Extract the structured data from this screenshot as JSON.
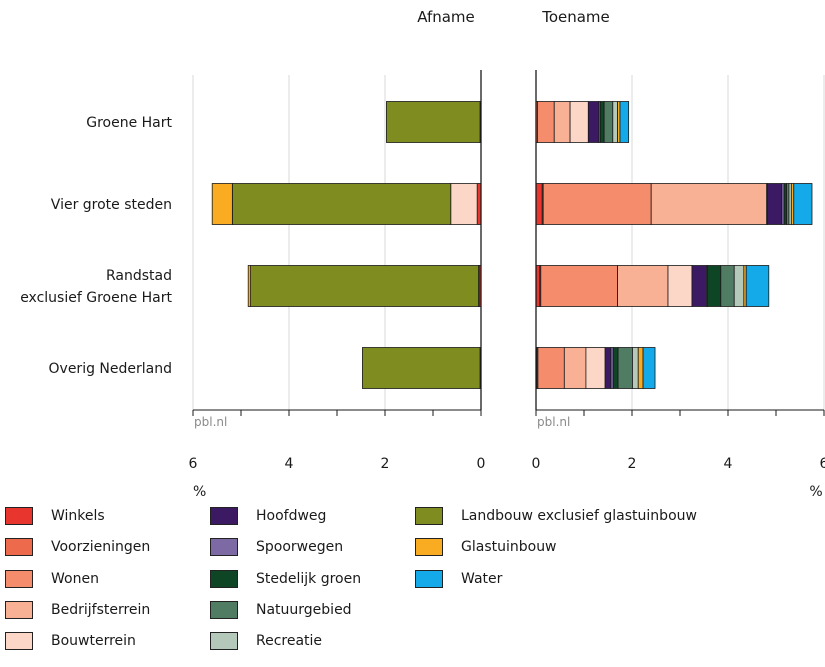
{
  "chart_data": {
    "type": "bar",
    "orientation": "horizontal",
    "stacked": true,
    "panels": [
      {
        "title": "Afname",
        "direction": "reversed",
        "xlim": [
          0,
          6
        ],
        "ticks": [
          6,
          4,
          2,
          0
        ],
        "xlabel": "%",
        "watermark": "pbl.nl"
      },
      {
        "title": "Toename",
        "direction": "normal",
        "xlim": [
          0,
          6
        ],
        "ticks": [
          0,
          2,
          4,
          6
        ],
        "xlabel": "%",
        "watermark": "pbl.nl"
      }
    ],
    "categories": [
      "Groene Hart",
      "Vier grote steden",
      "Randstad exclusief Groene Hart",
      "Overig Nederland"
    ],
    "category_lines": [
      [
        "Groene Hart"
      ],
      [
        "Vier grote steden"
      ],
      [
        "Randstad",
        "exclusief Groene Hart"
      ],
      [
        "Overig Nederland"
      ]
    ],
    "series": [
      {
        "name": "Winkels",
        "color": "#e8352e",
        "afname": [
          0,
          0.08,
          0.03,
          0
        ],
        "toename": [
          0,
          0.13,
          0.08,
          0.02
        ]
      },
      {
        "name": "Voorzieningen",
        "color": "#ee6a4c",
        "afname": [
          0,
          0,
          0,
          0
        ],
        "toename": [
          0.03,
          0.02,
          0.02,
          0.02
        ]
      },
      {
        "name": "Wonen",
        "color": "#f58d6d",
        "afname": [
          0,
          0,
          0,
          0
        ],
        "toename": [
          0.35,
          2.25,
          1.6,
          0.55
        ]
      },
      {
        "name": "Bedrijfsterrein",
        "color": "#f9b196",
        "afname": [
          0,
          0,
          0,
          0
        ],
        "toename": [
          0.33,
          2.4,
          1.05,
          0.45
        ]
      },
      {
        "name": "Bouwterrein",
        "color": "#fcd6c6",
        "afname": [
          0.02,
          0.55,
          0.02,
          0.02
        ],
        "toename": [
          0.38,
          0.02,
          0.5,
          0.4
        ]
      },
      {
        "name": "Hoofdweg",
        "color": "#3c1a63",
        "afname": [
          0,
          0,
          0,
          0
        ],
        "toename": [
          0.22,
          0.3,
          0.3,
          0.12
        ]
      },
      {
        "name": "Spoorwegen",
        "color": "#7d6aa4",
        "afname": [
          0,
          0,
          0,
          0
        ],
        "toename": [
          0.03,
          0.05,
          0.02,
          0.05
        ]
      },
      {
        "name": "Stedelijk groen",
        "color": "#0d4525",
        "afname": [
          0,
          0,
          0,
          0
        ],
        "toename": [
          0.08,
          0.05,
          0.28,
          0.1
        ]
      },
      {
        "name": "Natuurgebied",
        "color": "#4f7c63",
        "afname": [
          0,
          0,
          0,
          0
        ],
        "toename": [
          0.18,
          0.05,
          0.28,
          0.3
        ]
      },
      {
        "name": "Recreatie",
        "color": "#b5c9bb",
        "afname": [
          0,
          0,
          0,
          0
        ],
        "toename": [
          0.1,
          0.05,
          0.2,
          0.12
        ]
      },
      {
        "name": "Landbouw exclusief glastuinbouw",
        "color": "#7f8c1f",
        "afname": [
          1.95,
          4.55,
          4.75,
          2.45
        ],
        "toename": [
          0,
          0,
          0,
          0
        ]
      },
      {
        "name": "Glastuinbouw",
        "color": "#f9ab22",
        "afname": [
          0,
          0.42,
          0.05,
          0
        ],
        "toename": [
          0.05,
          0.05,
          0.05,
          0.1
        ]
      },
      {
        "name": "Water",
        "color": "#14a9e8",
        "afname": [
          0,
          0,
          0,
          0
        ],
        "toename": [
          0.18,
          0.38,
          0.47,
          0.25
        ]
      }
    ],
    "grid": true,
    "legend": "bottom"
  }
}
